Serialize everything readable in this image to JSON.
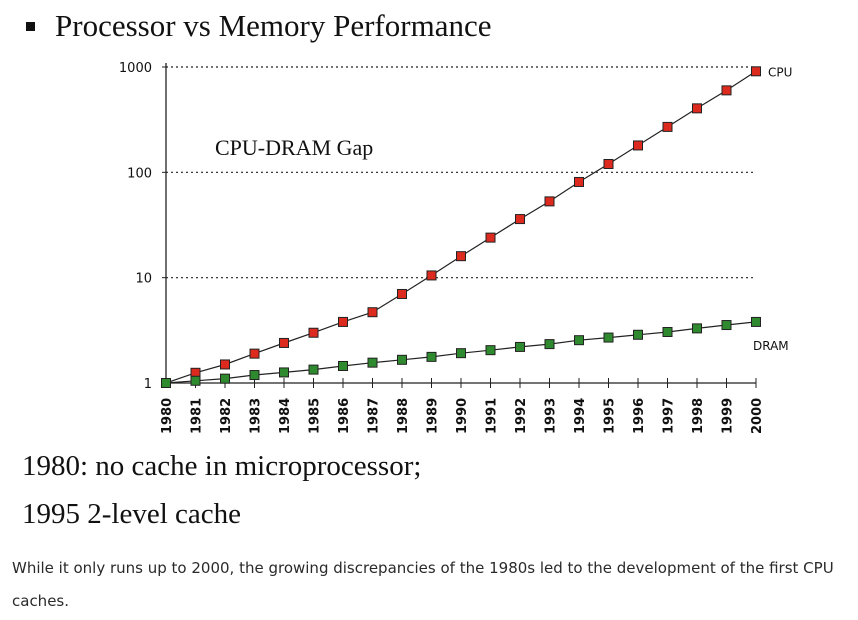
{
  "slide": {
    "title": "Processor vs Memory Performance",
    "notes": [
      "1980: no cache in microprocessor;",
      "1995 2-level cache"
    ]
  },
  "caption": "While it only runs up to 2000, the growing discrepancies of the 1980s led to the development of the first CPU caches.",
  "chart_data": {
    "type": "line",
    "title": "Processor vs Memory Performance",
    "yscale": "log",
    "ylim": [
      1,
      1000
    ],
    "yticks": [
      1,
      10,
      100,
      1000
    ],
    "ytick_labels": [
      "1",
      "10",
      "100",
      "1000"
    ],
    "grid": true,
    "annotation": "CPU-DRAM Gap",
    "x": [
      "1980",
      "1981",
      "1982",
      "1983",
      "1984",
      "1985",
      "1986",
      "1987",
      "1988",
      "1989",
      "1990",
      "1991",
      "1992",
      "1993",
      "1994",
      "1995",
      "1996",
      "1997",
      "1998",
      "1999",
      "2000"
    ],
    "series": [
      {
        "name": "CPU",
        "color": "#dd2a1f",
        "values": [
          1,
          1.25,
          1.5,
          1.9,
          2.4,
          3.0,
          3.8,
          4.7,
          7.0,
          10.5,
          16,
          24,
          36,
          53,
          81,
          120,
          180,
          270,
          405,
          600,
          910
        ]
      },
      {
        "name": "DRAM",
        "color": "#2f8a2f",
        "values": [
          1,
          1.05,
          1.1,
          1.19,
          1.26,
          1.34,
          1.45,
          1.56,
          1.66,
          1.77,
          1.92,
          2.05,
          2.2,
          2.34,
          2.55,
          2.7,
          2.87,
          3.05,
          3.3,
          3.55,
          3.8
        ]
      }
    ]
  }
}
